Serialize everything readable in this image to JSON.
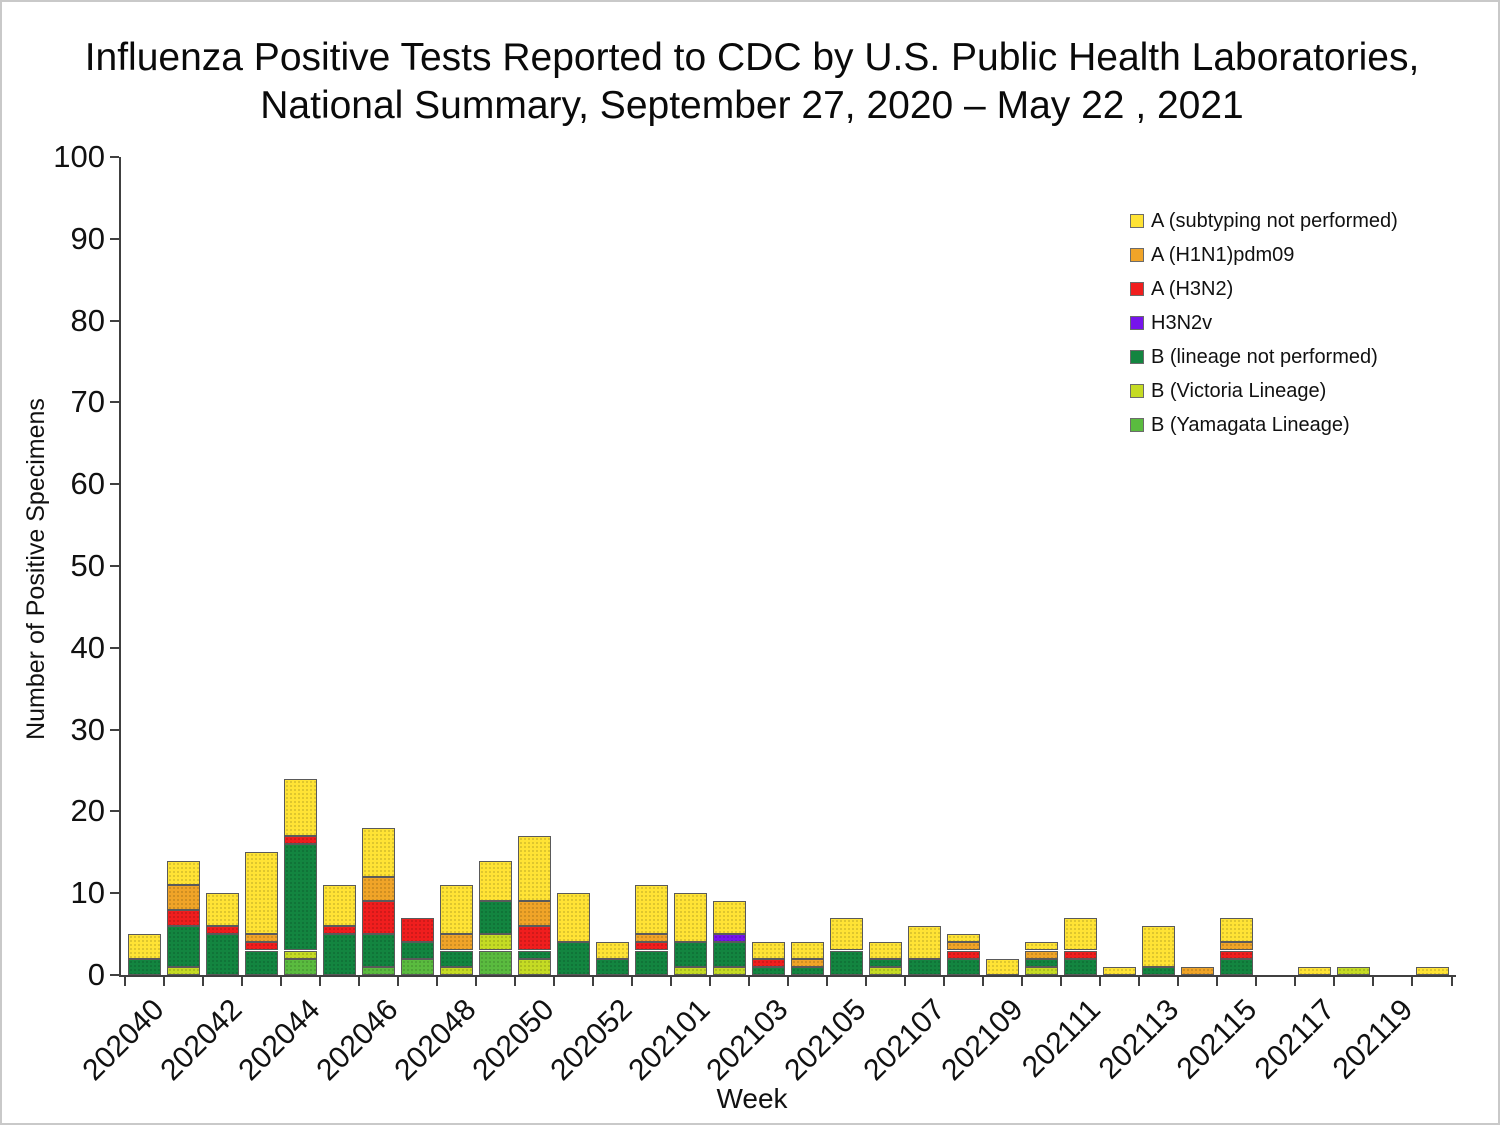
{
  "title": {
    "line1": "Influenza Positive Tests Reported to CDC by U.S. Public Health Laboratories,",
    "line2": "National Summary, September 27, 2020 – May 22 , 2021"
  },
  "chart_data": {
    "type": "bar",
    "stacked": true,
    "title": "Influenza Positive Tests Reported to CDC by U.S. Public Health Laboratories, National Summary, September 27, 2020 – May 22 , 2021",
    "xlabel": "Week",
    "ylabel": "Number of Positive Specimens",
    "ylim": [
      0,
      100
    ],
    "grid": false,
    "legend_position": "upper right",
    "y_tick_labels": [
      "0",
      "10",
      "20",
      "30",
      "40",
      "50",
      "60",
      "70",
      "80",
      "90",
      "100"
    ],
    "categories": [
      "202040",
      "202041",
      "202042",
      "202043",
      "202044",
      "202045",
      "202046",
      "202047",
      "202048",
      "202049",
      "202050",
      "202051",
      "202052",
      "202053",
      "202101",
      "202102",
      "202103",
      "202104",
      "202105",
      "202106",
      "202107",
      "202108",
      "202109",
      "202110",
      "202111",
      "202112",
      "202113",
      "202114",
      "202115",
      "202116",
      "202117",
      "202118",
      "202119",
      "202120"
    ],
    "x_tick_labels": [
      "202040",
      "202042",
      "202044",
      "202046",
      "202048",
      "202050",
      "202052",
      "202101",
      "202103",
      "202105",
      "202107",
      "202109",
      "202111",
      "202113",
      "202115",
      "202117",
      "202119"
    ],
    "series": [
      {
        "name": "B (Yamagata Lineage)",
        "color": "#5ABB3F",
        "values": [
          0,
          0,
          0,
          0,
          2,
          0,
          1,
          2,
          0,
          3,
          0,
          0,
          0,
          0,
          0,
          0,
          0,
          0,
          0,
          0,
          0,
          0,
          0,
          0,
          0,
          0,
          0,
          0,
          0,
          0,
          0,
          0,
          0,
          0
        ]
      },
      {
        "name": "B (Victoria Lineage)",
        "color": "#C5DB24",
        "values": [
          0,
          1,
          0,
          0,
          1,
          0,
          0,
          0,
          1,
          2,
          2,
          0,
          0,
          0,
          1,
          1,
          0,
          0,
          0,
          1,
          0,
          0,
          0,
          1,
          0,
          0,
          0,
          0,
          0,
          0,
          0,
          1,
          0,
          0
        ]
      },
      {
        "name": "B (lineage not performed)",
        "color": "#138540",
        "values": [
          2,
          5,
          5,
          3,
          13,
          5,
          4,
          2,
          2,
          4,
          1,
          4,
          2,
          3,
          3,
          3,
          1,
          1,
          3,
          1,
          2,
          2,
          0,
          1,
          2,
          0,
          1,
          0,
          2,
          0,
          0,
          0,
          0,
          0
        ]
      },
      {
        "name": "H3N2v",
        "color": "#7613EC",
        "values": [
          0,
          0,
          0,
          0,
          0,
          0,
          0,
          0,
          0,
          0,
          0,
          0,
          0,
          0,
          0,
          1,
          0,
          0,
          0,
          0,
          0,
          0,
          0,
          0,
          0,
          0,
          0,
          0,
          0,
          0,
          0,
          0,
          0,
          0
        ]
      },
      {
        "name": "A (H3N2)",
        "color": "#F01E1E",
        "values": [
          0,
          2,
          1,
          1,
          1,
          1,
          4,
          3,
          0,
          0,
          3,
          0,
          0,
          1,
          0,
          0,
          1,
          0,
          0,
          0,
          0,
          1,
          0,
          0,
          1,
          0,
          0,
          0,
          1,
          0,
          0,
          0,
          0,
          0
        ]
      },
      {
        "name": "A (H1N1)pdm09",
        "color": "#F0A428",
        "values": [
          0,
          3,
          0,
          1,
          0,
          0,
          3,
          0,
          2,
          0,
          3,
          0,
          0,
          1,
          0,
          0,
          0,
          1,
          0,
          0,
          0,
          1,
          0,
          1,
          0,
          0,
          0,
          1,
          1,
          0,
          0,
          0,
          0,
          0
        ]
      },
      {
        "name": "A (subtyping not performed)",
        "color": "#FFE335",
        "values": [
          3,
          3,
          4,
          10,
          7,
          5,
          6,
          0,
          6,
          5,
          8,
          6,
          2,
          6,
          6,
          4,
          2,
          2,
          4,
          2,
          4,
          1,
          2,
          1,
          4,
          1,
          5,
          0,
          3,
          0,
          1,
          0,
          0,
          1
        ]
      }
    ]
  }
}
